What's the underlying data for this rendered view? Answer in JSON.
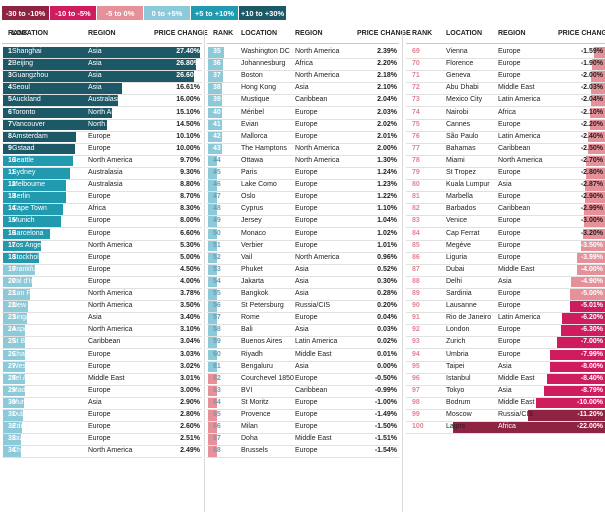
{
  "legend": [
    {
      "label": "-30 to -10%",
      "color": "#8e2342"
    },
    {
      "label": "-10 to -5%",
      "color": "#cf1c5e"
    },
    {
      "label": "-5 to 0%",
      "color": "#e6919a"
    },
    {
      "label": "0 to +5%",
      "color": "#8cc9d9"
    },
    {
      "label": "+5 to +10%",
      "color": "#219ab0"
    },
    {
      "label": "+10 to +30%",
      "color": "#1d5866"
    }
  ],
  "headers": {
    "rank": "RANK",
    "location": "LOCATION",
    "region": "REGION",
    "change": "PRICE CHANGE"
  },
  "chart_data": {
    "type": "table",
    "unit": "%",
    "columns": [
      "RANK",
      "LOCATION",
      "REGION",
      "PRICE CHANGE"
    ],
    "rows": [
      [
        1,
        "Shanghai",
        "Asia",
        27.4
      ],
      [
        2,
        "Beijing",
        "Asia",
        26.8
      ],
      [
        3,
        "Guangzhou",
        "Asia",
        26.6
      ],
      [
        4,
        "Seoul",
        "Asia",
        16.61
      ],
      [
        5,
        "Auckland",
        "Australasia",
        16.0
      ],
      [
        6,
        "Toronto",
        "North America",
        15.1
      ],
      [
        7,
        "Vancouver",
        "North America",
        14.5
      ],
      [
        8,
        "Amsterdam",
        "Europe",
        10.1
      ],
      [
        9,
        "Gstaad",
        "Europe",
        10.0
      ],
      [
        10,
        "Seattle",
        "North America",
        9.7
      ],
      [
        11,
        "Sydney",
        "Australasia",
        9.3
      ],
      [
        12,
        "Melbourne",
        "Australasia",
        8.8
      ],
      [
        13,
        "Berlin",
        "Europe",
        8.7
      ],
      [
        14,
        "Cape Town",
        "Africa",
        8.3
      ],
      [
        15,
        "Munich",
        "Europe",
        8.0
      ],
      [
        16,
        "Barcelona",
        "Europe",
        6.6
      ],
      [
        17,
        "Los Angeles",
        "North America",
        5.3
      ],
      [
        18,
        "Stockholm",
        "Europe",
        5.0
      ],
      [
        19,
        "Frankfurt",
        "Europe",
        4.5
      ],
      [
        20,
        "Val d'Isere",
        "Europe",
        4.0
      ],
      [
        21,
        "San Francisco",
        "North America",
        3.78
      ],
      [
        22,
        "New York",
        "North America",
        3.5
      ],
      [
        23,
        "Singapore",
        "Asia",
        3.4
      ],
      [
        24,
        "Aspen",
        "North America",
        3.1
      ],
      [
        25,
        "St Barts",
        "Caribbean",
        3.04
      ],
      [
        26,
        "Chamonix",
        "Europe",
        3.03
      ],
      [
        27,
        "Western Algarve",
        "Europe",
        3.02
      ],
      [
        28,
        "Tel Aviv",
        "Middle East",
        3.01
      ],
      [
        29,
        "Madrid",
        "Europe",
        3.0
      ],
      [
        30,
        "Mumbai",
        "Asia",
        2.9
      ],
      [
        31,
        "Dublin",
        "Europe",
        2.8
      ],
      [
        32,
        "Edinburgh",
        "Europe",
        2.6
      ],
      [
        33,
        "Ibiza",
        "Europe",
        2.51
      ],
      [
        34,
        "Chicago",
        "North America",
        2.49
      ],
      [
        35,
        "Washington DC",
        "North America",
        2.39
      ],
      [
        36,
        "Johannesburg",
        "Africa",
        2.2
      ],
      [
        37,
        "Boston",
        "North America",
        2.18
      ],
      [
        38,
        "Hong Kong",
        "Asia",
        2.1
      ],
      [
        39,
        "Mustique",
        "Caribbean",
        2.04
      ],
      [
        40,
        "Méribel",
        "Europe",
        2.03
      ],
      [
        41,
        "Evian",
        "Europe",
        2.02
      ],
      [
        42,
        "Mallorca",
        "Europe",
        2.01
      ],
      [
        43,
        "The Hamptons",
        "North America",
        2.0
      ],
      [
        44,
        "Ottawa",
        "North America",
        1.3
      ],
      [
        45,
        "Paris",
        "Europe",
        1.24
      ],
      [
        46,
        "Lake Como",
        "Europe",
        1.23
      ],
      [
        47,
        "Oslo",
        "Europe",
        1.22
      ],
      [
        48,
        "Cyprus",
        "Europe",
        1.1
      ],
      [
        49,
        "Jersey",
        "Europe",
        1.04
      ],
      [
        50,
        "Monaco",
        "Europe",
        1.02
      ],
      [
        51,
        "Verbier",
        "Europe",
        1.01
      ],
      [
        52,
        "Vail",
        "North America",
        0.96
      ],
      [
        53,
        "Phuket",
        "Asia",
        0.52
      ],
      [
        54,
        "Jakarta",
        "Asia",
        0.3
      ],
      [
        55,
        "Bangkok",
        "Asia",
        0.28
      ],
      [
        56,
        "St Petersburg",
        "Russia/CIS",
        0.2
      ],
      [
        57,
        "Rome",
        "Europe",
        0.04
      ],
      [
        58,
        "Bali",
        "Asia",
        0.03
      ],
      [
        59,
        "Buenos Aires",
        "Latin America",
        0.02
      ],
      [
        60,
        "Riyadh",
        "Middle East",
        0.01
      ],
      [
        61,
        "Bengaluru",
        "Asia",
        0.0
      ],
      [
        62,
        "Courchevel 1850",
        "Europe",
        -0.5
      ],
      [
        63,
        "BVI",
        "Caribbean",
        -0.99
      ],
      [
        64,
        "St Moritz",
        "Europe",
        -1.0
      ],
      [
        65,
        "Provence",
        "Europe",
        -1.49
      ],
      [
        66,
        "Milan",
        "Europe",
        -1.5
      ],
      [
        67,
        "Doha",
        "Middle East",
        -1.51
      ],
      [
        68,
        "Brussels",
        "Europe",
        -1.54
      ],
      [
        69,
        "Vienna",
        "Europe",
        -1.59
      ],
      [
        70,
        "Florence",
        "Europe",
        -1.9
      ],
      [
        71,
        "Geneva",
        "Europe",
        -2.0
      ],
      [
        72,
        "Abu Dhabi",
        "Middle East",
        -2.03
      ],
      [
        73,
        "Mexico City",
        "Latin America",
        -2.04
      ],
      [
        74,
        "Nairobi",
        "Africa",
        -2.1
      ],
      [
        75,
        "Cannes",
        "Europe",
        -2.2
      ],
      [
        76,
        "São Paulo",
        "Latin America",
        -2.4
      ],
      [
        77,
        "Bahamas",
        "Caribbean",
        -2.5
      ],
      [
        78,
        "Miami",
        "North America",
        -2.7
      ],
      [
        79,
        "St Tropez",
        "Europe",
        -2.8
      ],
      [
        80,
        "Kuala Lumpur",
        "Asia",
        -2.87
      ],
      [
        81,
        "Marbella",
        "Europe",
        -2.9
      ],
      [
        82,
        "Barbados",
        "Caribbean",
        -2.99
      ],
      [
        83,
        "Venice",
        "Europe",
        -3.0
      ],
      [
        84,
        "Cap Ferrat",
        "Europe",
        -3.2
      ],
      [
        85,
        "Megève",
        "Europe",
        -3.5
      ],
      [
        86,
        "Liguria",
        "Europe",
        -3.99
      ],
      [
        87,
        "Dubai",
        "Middle East",
        -4.0
      ],
      [
        88,
        "Delhi",
        "Asia",
        -4.9
      ],
      [
        89,
        "Sardinia",
        "Europe",
        -5.0
      ],
      [
        90,
        "Lausanne",
        "Europe",
        -5.01
      ],
      [
        91,
        "Rio de Janeiro",
        "Latin America",
        -6.2
      ],
      [
        92,
        "London",
        "Europe",
        -6.3
      ],
      [
        93,
        "Zurich",
        "Europe",
        -7.0
      ],
      [
        94,
        "Umbria",
        "Europe",
        -7.99
      ],
      [
        95,
        "Taipei",
        "Asia",
        -8.0
      ],
      [
        96,
        "Istanbul",
        "Middle East",
        -8.4
      ],
      [
        97,
        "Tokyo",
        "Asia",
        -8.79
      ],
      [
        98,
        "Bodrum",
        "Middle East",
        -10.0
      ],
      [
        99,
        "Moscow",
        "Russia/CIS",
        -11.2
      ],
      [
        100,
        "Lagos",
        "Africa",
        -22.0
      ]
    ]
  }
}
